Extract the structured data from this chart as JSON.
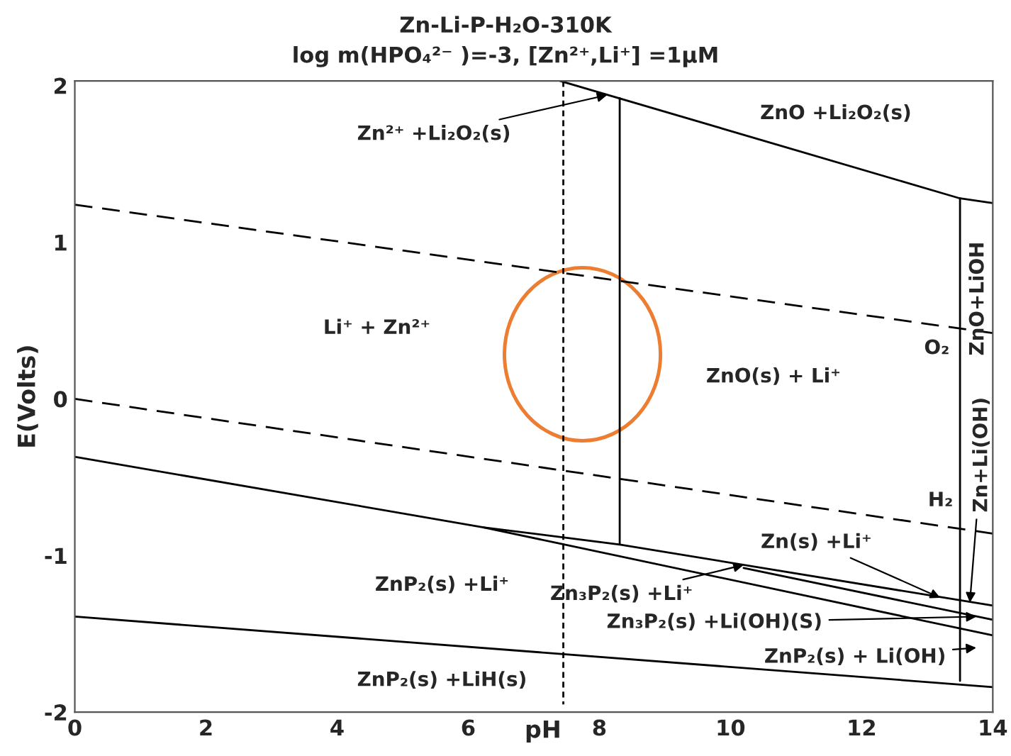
{
  "chart_data": {
    "type": "line",
    "title": "Zn-Li-P-H₂O-310K",
    "subtitle": "log m(HPO₄²⁻ )=-3, [Zn²⁺,Li⁺] =1μM",
    "xlabel": "pH",
    "ylabel": "E(Volts)",
    "xlim": [
      0,
      14
    ],
    "ylim": [
      -2,
      2.03
    ],
    "xticks": [
      0,
      2,
      4,
      6,
      8,
      10,
      12,
      14
    ],
    "yticks": [
      -2,
      -1,
      0,
      1,
      2
    ],
    "grid": false,
    "legend": false,
    "series": [
      {
        "x": [
          0,
          14
        ],
        "values": [
          1.24,
          0.42
        ],
        "color": "#000000",
        "line_style": "dashed"
      },
      {
        "x": [
          0,
          14
        ],
        "values": [
          0,
          -0.86
        ],
        "color": "#000000",
        "line_style": "dashed"
      },
      {
        "x": [
          7.45,
          7.45
        ],
        "values": [
          2.03,
          -1.95
        ],
        "color": "#000000",
        "line_style": "dotted"
      },
      {
        "x": [
          7.4,
          13.5,
          14
        ],
        "values": [
          2.03,
          1.28,
          1.25
        ],
        "color": "#000000",
        "line_style": "solid"
      },
      {
        "x": [
          8.31,
          8.31
        ],
        "values": [
          1.92,
          -0.93
        ],
        "color": "#000000",
        "line_style": "solid"
      },
      {
        "x": [
          13.5,
          13.5
        ],
        "values": [
          1.28,
          -1.8
        ],
        "color": "#000000",
        "line_style": "solid"
      },
      {
        "x": [
          0,
          6.23,
          8.31,
          14
        ],
        "values": [
          -0.37,
          -0.82,
          -0.93,
          -1.32
        ],
        "color": "#000000",
        "line_style": "solid"
      },
      {
        "x": [
          6.23,
          14
        ],
        "values": [
          -0.82,
          -1.51
        ],
        "color": "#000000",
        "line_style": "solid"
      },
      {
        "x": [
          10.2,
          14
        ],
        "values": [
          -1.08,
          -1.41
        ],
        "color": "#000000",
        "line_style": "solid"
      },
      {
        "x": [
          0,
          14
        ],
        "values": [
          -1.39,
          -1.84
        ],
        "color": "#000000",
        "line_style": "solid"
      }
    ],
    "annotations": [
      {
        "text": "Zn²⁺ +Li₂O₂(s)",
        "x": 8.12,
        "y": 1.94
      },
      "ZnO +Li₂O₂(s)",
      "Li⁺ + Zn²⁺",
      "ZnO(s) + Li⁺",
      "O₂",
      "ZnO+LiOH",
      "H₂",
      {
        "text": "Zn+Li(OH)",
        "x": 13.65,
        "y": -1.3
      },
      {
        "text": "Zn(s) +Li⁺",
        "x": 13.2,
        "y": -1.27
      },
      "ZnP₂(s) +Li⁺",
      {
        "text": "Zn₃P₂(s) +Li⁺",
        "x": 10.2,
        "y": -1.06
      },
      {
        "text": "Zn₃P₂(s) +Li(OH)(S)",
        "x": 13.75,
        "y": -1.39
      },
      "ZnP₂(s) + Li(OH)",
      "ZnP₂(s) +LiH(s)"
    ]
  }
}
